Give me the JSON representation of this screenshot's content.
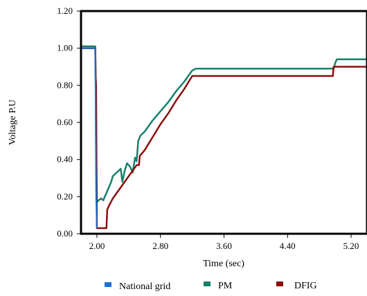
{
  "chart_data": {
    "type": "line",
    "title": "",
    "xlabel": "Time (sec)",
    "ylabel": "Voltage P.U",
    "xlim": [
      1.8,
      5.4
    ],
    "ylim": [
      0.0,
      1.2
    ],
    "x_ticks": [
      "2.00",
      "2.80",
      "3.60",
      "4.40",
      "5.20"
    ],
    "x_tick_values": [
      2.0,
      2.8,
      3.6,
      4.4,
      5.2
    ],
    "y_ticks": [
      "0.00",
      "0.20",
      "0.40",
      "0.60",
      "0.80",
      "1.00",
      "1.20"
    ],
    "y_tick_values": [
      0.0,
      0.2,
      0.4,
      0.6,
      0.8,
      1.0,
      1.2
    ],
    "grid": false,
    "legend_position": "bottom",
    "series": [
      {
        "name": "National grid",
        "color": "#1f6fd1",
        "x": [
          1.8,
          1.98,
          1.985,
          1.99,
          2.0
        ],
        "y": [
          1.0,
          1.0,
          0.6,
          0.2,
          0.03
        ]
      },
      {
        "name": "PM",
        "color": "#17806a",
        "x": [
          1.8,
          1.98,
          1.985,
          1.99,
          2.0,
          2.02,
          2.05,
          2.08,
          2.1,
          2.12,
          2.15,
          2.18,
          2.2,
          2.25,
          2.3,
          2.32,
          2.35,
          2.38,
          2.42,
          2.45,
          2.48,
          2.5,
          2.52,
          2.55,
          2.6,
          2.7,
          2.8,
          2.9,
          3.0,
          3.1,
          3.2,
          3.25,
          3.3,
          3.4,
          3.6,
          3.8,
          4.0,
          4.2,
          4.4,
          4.6,
          4.8,
          4.98,
          5.0,
          5.02,
          5.05,
          5.2,
          5.4
        ],
        "y": [
          1.01,
          1.01,
          0.8,
          0.4,
          0.17,
          0.18,
          0.19,
          0.18,
          0.2,
          0.22,
          0.25,
          0.28,
          0.31,
          0.33,
          0.35,
          0.28,
          0.34,
          0.38,
          0.36,
          0.33,
          0.41,
          0.39,
          0.5,
          0.53,
          0.55,
          0.61,
          0.66,
          0.71,
          0.77,
          0.82,
          0.88,
          0.89,
          0.89,
          0.89,
          0.89,
          0.89,
          0.89,
          0.89,
          0.89,
          0.89,
          0.89,
          0.89,
          0.92,
          0.94,
          0.94,
          0.94,
          0.94
        ]
      },
      {
        "name": "DFIG",
        "color": "#8b0d0d",
        "x": [
          1.8,
          1.98,
          1.985,
          1.99,
          2.0,
          2.1,
          2.12,
          2.13,
          2.15,
          2.2,
          2.3,
          2.4,
          2.45,
          2.5,
          2.53,
          2.54,
          2.6,
          2.7,
          2.8,
          2.9,
          3.0,
          3.1,
          3.2,
          3.4,
          3.6,
          3.8,
          4.0,
          4.2,
          4.4,
          4.6,
          4.8,
          4.97,
          4.98,
          5.0,
          5.2,
          5.4
        ],
        "y": [
          1.0,
          1.0,
          0.85,
          0.8,
          0.03,
          0.03,
          0.03,
          0.13,
          0.15,
          0.19,
          0.25,
          0.31,
          0.34,
          0.37,
          0.37,
          0.42,
          0.45,
          0.52,
          0.59,
          0.65,
          0.72,
          0.78,
          0.85,
          0.85,
          0.85,
          0.85,
          0.85,
          0.85,
          0.85,
          0.85,
          0.85,
          0.85,
          0.9,
          0.9,
          0.9,
          0.9
        ]
      }
    ]
  }
}
